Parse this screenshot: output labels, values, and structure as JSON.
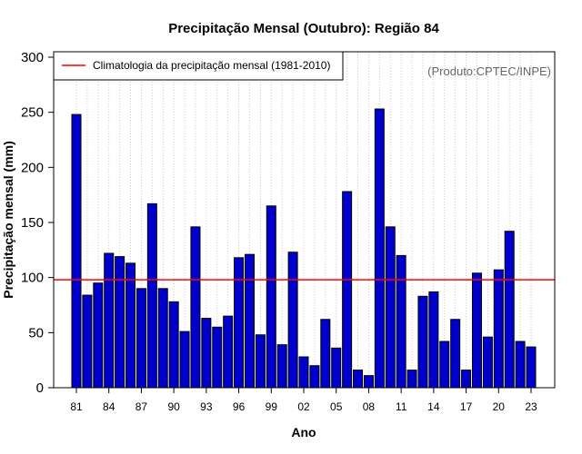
{
  "chart_data": {
    "type": "bar",
    "title": "Precipitação Mensal (Outubro): Região 84",
    "xlabel": "Ano",
    "ylabel": "Precipitação mensal (mm)",
    "ylim": [
      0,
      300
    ],
    "yticks": [
      0,
      50,
      100,
      150,
      200,
      250,
      300
    ],
    "categories": [
      "81",
      "82",
      "83",
      "84",
      "85",
      "86",
      "87",
      "88",
      "89",
      "90",
      "91",
      "92",
      "93",
      "94",
      "95",
      "96",
      "97",
      "98",
      "99",
      "00",
      "01",
      "02",
      "03",
      "04",
      "05",
      "06",
      "07",
      "08",
      "09",
      "10",
      "11",
      "12",
      "13",
      "14",
      "15",
      "16",
      "17",
      "18",
      "19",
      "20",
      "21",
      "22",
      "23"
    ],
    "xtick_labels": [
      "81",
      "84",
      "87",
      "90",
      "93",
      "96",
      "99",
      "02",
      "05",
      "08",
      "11",
      "14",
      "17",
      "20",
      "23"
    ],
    "values": [
      248,
      84,
      95,
      122,
      119,
      113,
      90,
      167,
      90,
      78,
      51,
      146,
      63,
      55,
      65,
      118,
      121,
      48,
      165,
      39,
      123,
      28,
      20,
      62,
      36,
      178,
      16,
      11,
      253,
      146,
      120,
      16,
      83,
      87,
      42,
      62,
      16,
      104,
      46,
      107,
      142,
      42,
      37
    ],
    "bar_color": "#0000cd",
    "bar_edge_color": "#000000",
    "reference_line": {
      "label": "Climatologia da precipitação mensal (1981-2010)",
      "value": 98,
      "color": "#ff0000"
    },
    "legend_position": "top-left",
    "grid": "vertical dotted",
    "credit": "(Produto:CPTEC/INPE)"
  }
}
